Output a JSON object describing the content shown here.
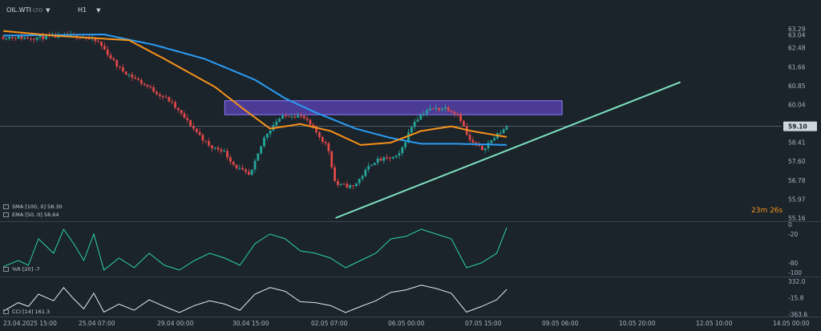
{
  "header": {
    "symbol": "OIL.WTI",
    "symbol_sub": "CFD",
    "timeframe": "H1"
  },
  "indicators": {
    "sma_label": "SMA [100, 0] 58.30",
    "ema_label": "EMA [50, 0] 58.64",
    "wr_label": "%R [20] -7",
    "cci_label": "CCI [14] 161.3"
  },
  "countdown": "23m 26s",
  "colors": {
    "background": "#1b232b",
    "bull": "#26a69a",
    "bear": "#e04848",
    "sma": "#2a9df4",
    "ema": "#f7931a",
    "trendline": "#7ee2c0",
    "zone": "#6a4bd6",
    "oscillator": "#2bd6a0",
    "grid": "#2a333c",
    "text": "#aab4be"
  },
  "chart_data": [
    {
      "type": "candlestick",
      "title": "OIL.WTI",
      "price_ticks": [
        63.29,
        63.04,
        62.48,
        61.66,
        60.85,
        60.04,
        58.41,
        57.6,
        56.78,
        55.97,
        55.16
      ],
      "current_price": 59.1,
      "ylim": [
        55.16,
        63.29
      ],
      "time_labels": [
        "23.04.2025 15:00",
        "25.04 07:00",
        "29.04 00:00",
        "30.04 15:00",
        "02.05 07:00",
        "06.05 00:00",
        "07.05 15:00",
        "09.05 06:00",
        "10.05 20:00",
        "12.05 10:00",
        "14.05 00:00"
      ],
      "series": [
        {
          "name": "SMA [100, 0]",
          "last": 58.3
        },
        {
          "name": "EMA [50, 0]",
          "last": 58.64
        }
      ],
      "anchors": [
        [
          0,
          62.95
        ],
        [
          0.5,
          62.9
        ],
        [
          1,
          62.95
        ],
        [
          1.5,
          63.0
        ],
        [
          1.9,
          62.7
        ],
        [
          2.3,
          61.6
        ],
        [
          2.8,
          60.9
        ],
        [
          3.3,
          60.2
        ],
        [
          3.7,
          59.2
        ],
        [
          3.95,
          58.6
        ],
        [
          4.1,
          58.2
        ],
        [
          4.35,
          58.1
        ],
        [
          4.6,
          57.4
        ],
        [
          4.9,
          56.95
        ],
        [
          5.2,
          58.7
        ],
        [
          5.45,
          59.4
        ],
        [
          5.7,
          59.6
        ],
        [
          5.95,
          59.5
        ],
        [
          6.2,
          58.9
        ],
        [
          6.45,
          58.2
        ],
        [
          6.6,
          56.6
        ],
        [
          6.95,
          56.5
        ],
        [
          7.35,
          57.6
        ],
        [
          7.85,
          57.8
        ],
        [
          8.15,
          59.3
        ],
        [
          8.4,
          59.8
        ],
        [
          8.8,
          59.9
        ],
        [
          9.05,
          59.6
        ],
        [
          9.25,
          58.5
        ],
        [
          9.5,
          58.1
        ],
        [
          9.85,
          58.8
        ],
        [
          10.0,
          59.1
        ]
      ],
      "sma_anchors": [
        [
          0,
          63.0
        ],
        [
          2.0,
          63.05
        ],
        [
          3.0,
          62.6
        ],
        [
          4.0,
          62.0
        ],
        [
          5.0,
          61.1
        ],
        [
          5.6,
          60.3
        ],
        [
          6.2,
          59.7
        ],
        [
          7.0,
          59.0
        ],
        [
          7.7,
          58.6
        ],
        [
          8.3,
          58.35
        ],
        [
          9.0,
          58.35
        ],
        [
          10.0,
          58.3
        ]
      ],
      "ema_anchors": [
        [
          0,
          63.2
        ],
        [
          1.0,
          63.0
        ],
        [
          2.5,
          62.8
        ],
        [
          3.2,
          62.0
        ],
        [
          4.2,
          60.8
        ],
        [
          4.8,
          59.8
        ],
        [
          5.3,
          59.0
        ],
        [
          5.9,
          59.2
        ],
        [
          6.5,
          58.9
        ],
        [
          7.1,
          58.3
        ],
        [
          7.7,
          58.4
        ],
        [
          8.3,
          58.9
        ],
        [
          8.9,
          59.1
        ],
        [
          9.3,
          58.9
        ],
        [
          10.0,
          58.64
        ]
      ],
      "trendline": {
        "from": [
          6.6,
          55.16
        ],
        "to": [
          13.45,
          61.0
        ]
      },
      "zone": {
        "x0": 4.4,
        "x1": 11.1,
        "y0": 59.6,
        "y1": 60.2
      }
    },
    {
      "type": "line",
      "title": "%R [20]",
      "yticks": [
        0,
        -20,
        -80,
        -100
      ],
      "ylim": [
        -100,
        0
      ],
      "last": -7,
      "x": [
        0,
        0.3,
        0.5,
        0.7,
        1,
        1.2,
        1.4,
        1.6,
        1.8,
        2,
        2.3,
        2.6,
        2.9,
        3.2,
        3.5,
        3.8,
        4.1,
        4.4,
        4.7,
        5,
        5.3,
        5.6,
        5.9,
        6.2,
        6.5,
        6.8,
        7.1,
        7.4,
        7.7,
        8,
        8.3,
        8.6,
        8.9,
        9.2,
        9.5,
        9.8,
        10
      ],
      "values": [
        -88,
        -75,
        -85,
        -30,
        -60,
        -10,
        -40,
        -75,
        -20,
        -95,
        -70,
        -90,
        -60,
        -85,
        -95,
        -75,
        -60,
        -70,
        -85,
        -40,
        -20,
        -30,
        -55,
        -60,
        -70,
        -90,
        -75,
        -60,
        -30,
        -25,
        -10,
        -20,
        -30,
        -90,
        -80,
        -60,
        -7
      ]
    },
    {
      "type": "line",
      "title": "CCI [14]",
      "yticks": [
        332.0,
        -15.8,
        -363.6
      ],
      "ylim": [
        -363.6,
        332.0
      ],
      "last": 161.3,
      "x": [
        0,
        0.3,
        0.5,
        0.7,
        1,
        1.2,
        1.4,
        1.6,
        1.8,
        2,
        2.3,
        2.6,
        2.9,
        3.2,
        3.5,
        3.8,
        4.1,
        4.4,
        4.7,
        5,
        5.3,
        5.6,
        5.9,
        6.2,
        6.5,
        6.8,
        7.1,
        7.4,
        7.7,
        8,
        8.3,
        8.6,
        8.9,
        9.2,
        9.5,
        9.8,
        10
      ],
      "values": [
        -300,
        -120,
        -200,
        60,
        -80,
        200,
        -40,
        -250,
        80,
        -320,
        -150,
        -280,
        -60,
        -200,
        -330,
        -180,
        -80,
        -150,
        -280,
        60,
        200,
        120,
        -100,
        -120,
        -180,
        -330,
        -200,
        -80,
        100,
        150,
        250,
        180,
        80,
        -320,
        -200,
        -60,
        161.3
      ]
    }
  ]
}
